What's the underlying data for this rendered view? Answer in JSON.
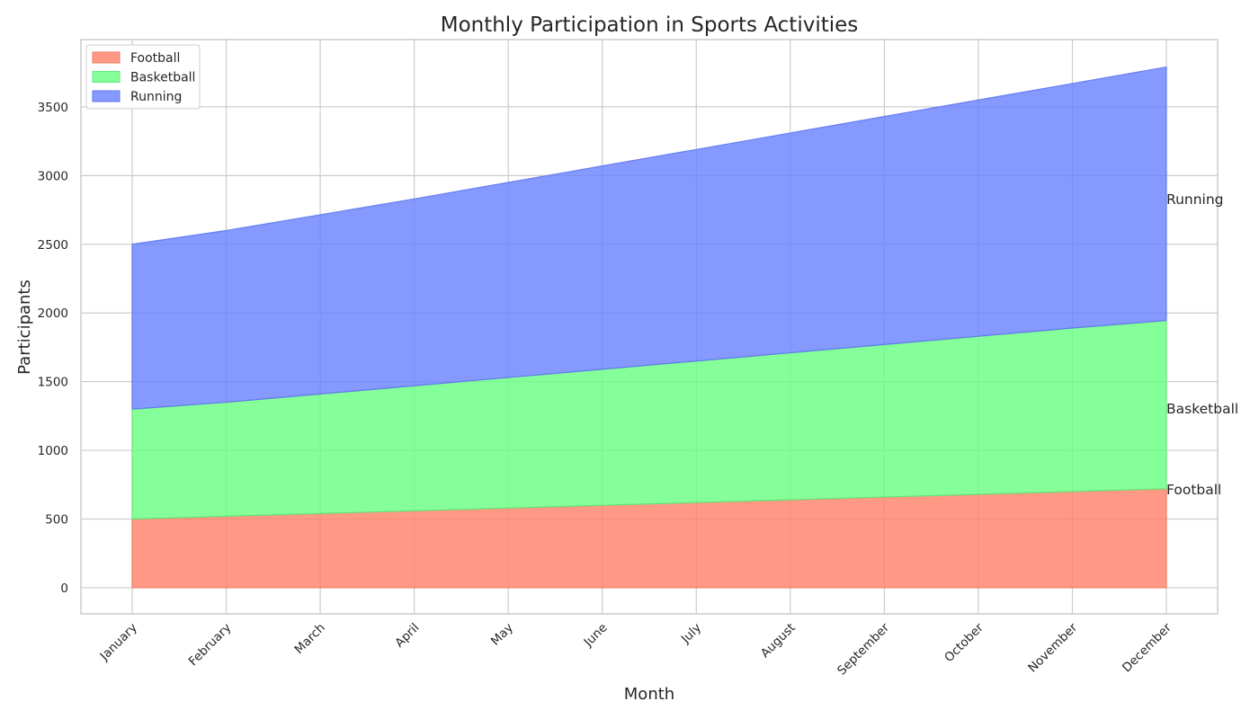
{
  "chart_data": {
    "type": "area",
    "stacked": true,
    "title": "Monthly Participation in Sports Activities",
    "xlabel": "Month",
    "ylabel": "Participants",
    "categories": [
      "January",
      "February",
      "March",
      "April",
      "May",
      "June",
      "July",
      "August",
      "September",
      "October",
      "November",
      "December"
    ],
    "ylim": [
      -190,
      3990
    ],
    "yticks": [
      0,
      500,
      1000,
      1500,
      2000,
      2500,
      3000,
      3500
    ],
    "grid": true,
    "legend_position": "top-left",
    "series": [
      {
        "name": "Football",
        "color": "#ff7f66",
        "line_color": "#f07a64",
        "values": [
          500,
          520,
          540,
          560,
          580,
          600,
          620,
          640,
          660,
          680,
          700,
          720
        ]
      },
      {
        "name": "Basketball",
        "color": "#66ff80",
        "line_color": "#5ee878",
        "values": [
          800,
          830,
          870,
          910,
          950,
          990,
          1030,
          1070,
          1110,
          1150,
          1190,
          1225
        ]
      },
      {
        "name": "Running",
        "color": "#6680ff",
        "line_color": "#6078f0",
        "values": [
          1200,
          1250,
          1305,
          1360,
          1420,
          1480,
          1540,
          1600,
          1660,
          1720,
          1780,
          1845
        ]
      }
    ]
  }
}
